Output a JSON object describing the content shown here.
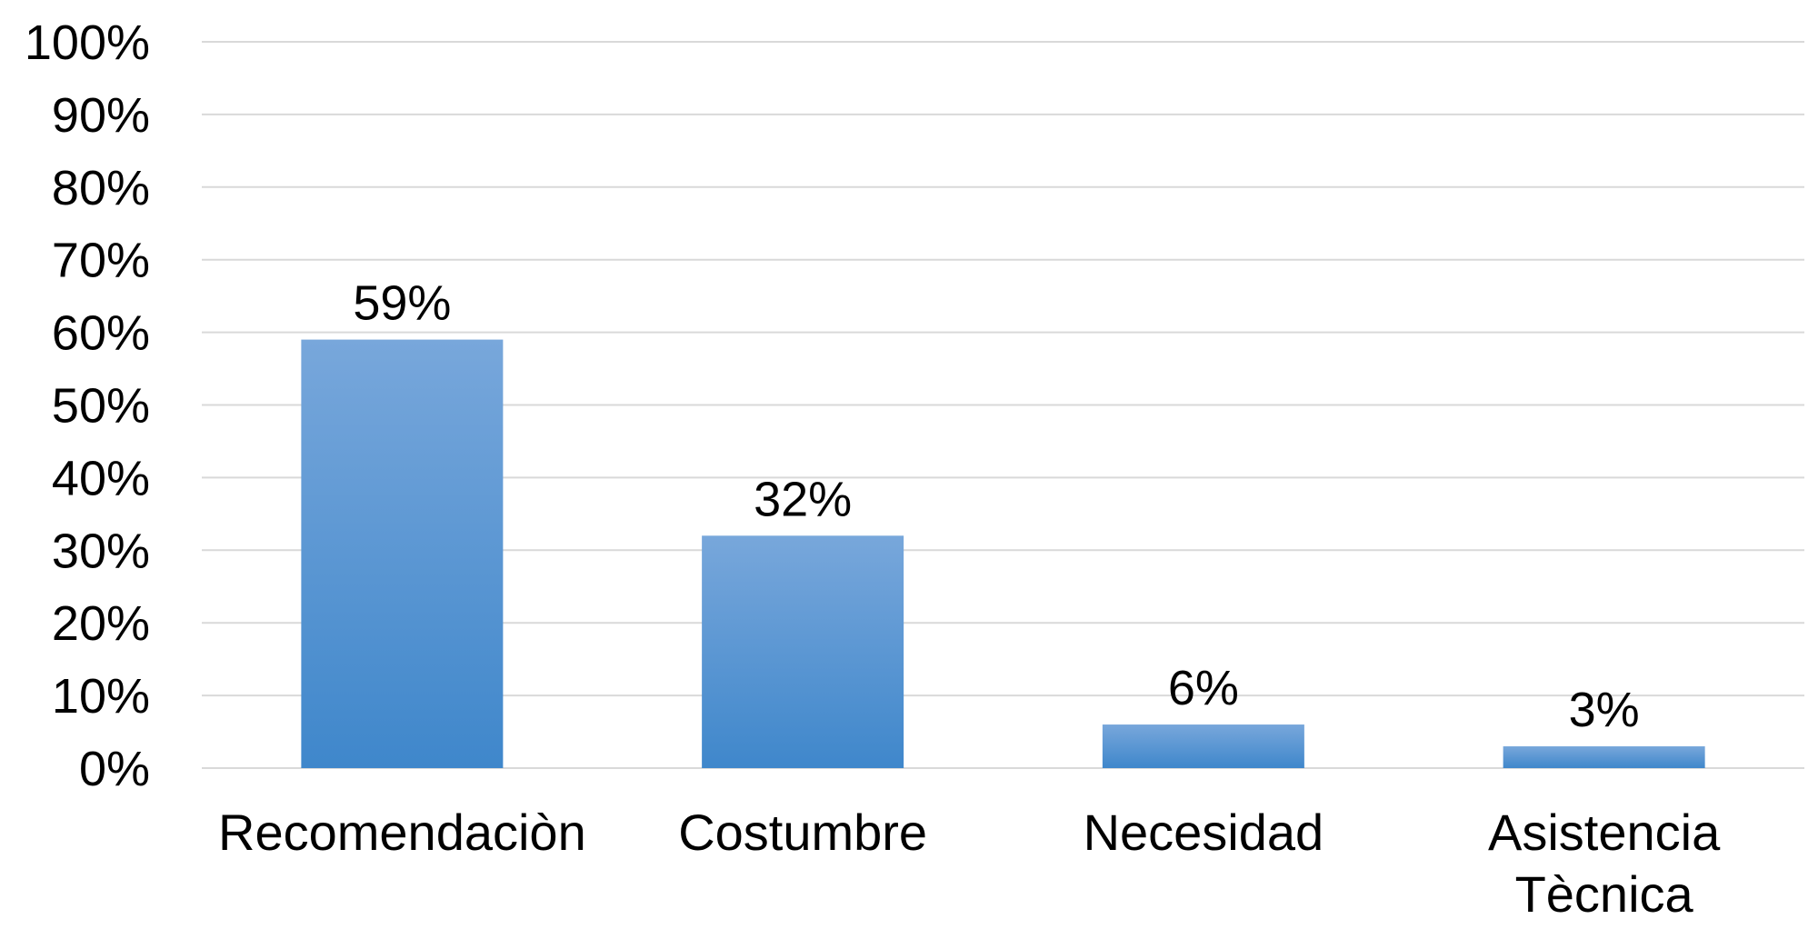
{
  "chart_data": {
    "type": "bar",
    "categories": [
      "Recomendaciòn",
      "Costumbre",
      "Necesidad",
      "Asistencia Tècnica"
    ],
    "category_lines": [
      [
        "Recomendaciòn"
      ],
      [
        "Costumbre"
      ],
      [
        "Necesidad"
      ],
      [
        "Asistencia",
        "Tècnica"
      ]
    ],
    "values": [
      59,
      32,
      6,
      3
    ],
    "data_labels": [
      "59%",
      "32%",
      "6%",
      "3%"
    ],
    "title": "",
    "xlabel": "",
    "ylabel": "",
    "ylim": [
      0,
      100
    ],
    "y_ticks": [
      0,
      10,
      20,
      30,
      40,
      50,
      60,
      70,
      80,
      90,
      100
    ],
    "y_tick_labels": [
      "0%",
      "10%",
      "20%",
      "30%",
      "40%",
      "50%",
      "60%",
      "70%",
      "80%",
      "90%",
      "100%"
    ],
    "grid": true,
    "legend": "none",
    "colors": {
      "bar_top": "#78a7db",
      "bar_bottom": "#3f87cb",
      "grid": "#d9d9d9",
      "text": "#000000"
    }
  }
}
